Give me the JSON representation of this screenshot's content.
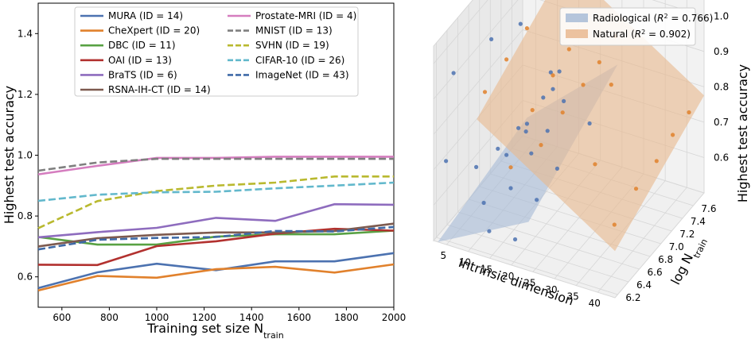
{
  "chart_data": [
    {
      "type": "line",
      "xlabel": "Training set size N_train",
      "ylabel": "Highest test accuracy",
      "xlim": [
        500,
        2000
      ],
      "ylim": [
        0.5,
        1.5
      ],
      "xticks": [
        600,
        800,
        1000,
        1200,
        1400,
        1600,
        1800,
        2000
      ],
      "yticks": [
        0.6,
        0.8,
        1.0,
        1.2,
        1.4
      ],
      "x": [
        500,
        750,
        1000,
        1250,
        1500,
        1750,
        2000
      ],
      "legend_position": "top",
      "series": [
        {
          "name": "MURA (ID = 14)",
          "color": "#4c72b0",
          "dash": false,
          "values": [
            0.563,
            0.615,
            0.643,
            0.622,
            0.651,
            0.651,
            0.678
          ]
        },
        {
          "name": "CheXpert (ID = 20)",
          "color": "#e1812c",
          "dash": false,
          "values": [
            0.555,
            0.603,
            0.597,
            0.625,
            0.633,
            0.614,
            0.641
          ]
        },
        {
          "name": "DBC (ID = 11)",
          "color": "#58a143",
          "dash": false,
          "values": [
            0.731,
            0.706,
            0.706,
            0.732,
            0.74,
            0.74,
            0.752
          ]
        },
        {
          "name": "OAI (ID = 13)",
          "color": "#b2312f",
          "dash": false,
          "values": [
            0.64,
            0.639,
            0.701,
            0.717,
            0.742,
            0.758,
            0.752
          ]
        },
        {
          "name": "BraTS (ID = 6)",
          "color": "#8e6cbe",
          "dash": false,
          "values": [
            0.73,
            0.747,
            0.761,
            0.794,
            0.784,
            0.839,
            0.837
          ]
        },
        {
          "name": "RSNA-IH-CT (ID = 14)",
          "color": "#7d5a4f",
          "dash": false,
          "values": [
            0.7,
            0.727,
            0.738,
            0.746,
            0.746,
            0.751,
            0.775
          ]
        },
        {
          "name": "Prostate-MRI (ID = 4)",
          "color": "#d57dbf",
          "dash": false,
          "values": [
            0.937,
            0.965,
            0.991,
            0.991,
            0.995,
            0.995,
            0.995
          ]
        },
        {
          "name": "MNIST (ID = 13)",
          "color": "#7f7f7f",
          "dash": true,
          "values": [
            0.949,
            0.976,
            0.988,
            0.988,
            0.988,
            0.988,
            0.988
          ]
        },
        {
          "name": "SVHN (ID = 19)",
          "color": "#b9b92f",
          "dash": true,
          "values": [
            0.76,
            0.849,
            0.882,
            0.9,
            0.91,
            0.93,
            0.93
          ]
        },
        {
          "name": "CIFAR-10 (ID = 26)",
          "color": "#62b8cc",
          "dash": true,
          "values": [
            0.85,
            0.87,
            0.878,
            0.88,
            0.891,
            0.9,
            0.91
          ]
        },
        {
          "name": "ImageNet (ID = 43)",
          "color": "#3f6aa7",
          "dash": true,
          "values": [
            0.69,
            0.722,
            0.728,
            0.731,
            0.751,
            0.749,
            0.764
          ]
        }
      ]
    },
    {
      "type": "scatter",
      "projection": "3d",
      "xlabel": "Intrinsic dimension",
      "ylabel": "log N_train",
      "zlabel": "Highest test accuracy",
      "xlim": [
        2,
        44
      ],
      "ylim": [
        6.15,
        7.8
      ],
      "zlim": [
        0.5,
        1.05
      ],
      "xticks": [
        5,
        10,
        15,
        20,
        25,
        30,
        35,
        40
      ],
      "yticks": [
        6.2,
        6.4,
        6.6,
        6.8,
        7.0,
        7.2,
        7.4,
        7.6
      ],
      "zticks": [
        0.6,
        0.7,
        0.8,
        0.9,
        1.0
      ],
      "legend_position": "top",
      "series": [
        {
          "name": "Radiological (R^2 = 0.766)",
          "legend_r2": "0.766",
          "legend_prefix": "Radiological",
          "color": "#4c72b0",
          "plane_color": "#a8bcd6",
          "plane": {
            "a": 0.011,
            "b": 0.09,
            "c": -0.18
          },
          "points": [
            [
              4,
              6.22,
              0.72
            ],
            [
              4,
              7.6,
              0.86
            ],
            [
              6,
              6.2,
              0.98
            ],
            [
              6,
              6.9,
              0.95
            ],
            [
              6,
              7.6,
              0.99
            ],
            [
              11,
              6.22,
              0.73
            ],
            [
              11,
              6.62,
              0.71
            ],
            [
              11,
              7.0,
              0.7
            ],
            [
              11,
              7.6,
              0.75
            ],
            [
              13,
              6.2,
              0.64
            ],
            [
              13,
              6.62,
              0.7
            ],
            [
              13,
              7.0,
              0.72
            ],
            [
              13,
              7.3,
              0.74
            ],
            [
              13,
              7.6,
              0.76
            ],
            [
              14,
              6.22,
              0.56
            ],
            [
              14,
              6.62,
              0.61
            ],
            [
              14,
              7.0,
              0.64
            ],
            [
              14,
              7.3,
              0.65
            ],
            [
              14,
              7.6,
              0.68
            ],
            [
              14,
              6.9,
              0.72
            ],
            [
              14,
              7.4,
              0.75
            ],
            [
              20,
              6.22,
              0.56
            ],
            [
              20,
              6.62,
              0.6
            ],
            [
              20,
              7.0,
              0.62
            ],
            [
              20,
              7.6,
              0.64
            ]
          ]
        },
        {
          "name": "Natural (R^2 = 0.902)",
          "legend_r2": "0.902",
          "legend_prefix": "Natural",
          "color": "#e1812c",
          "plane_color": "#e9b98f",
          "plane": {
            "a": -0.0078,
            "b": 0.087,
            "c": 0.44
          },
          "points": [
            [
              13,
              6.22,
              0.95
            ],
            [
              13,
              6.62,
              0.97
            ],
            [
              13,
              7.0,
              0.99
            ],
            [
              13,
              7.6,
              0.99
            ],
            [
              19,
              6.22,
              0.76
            ],
            [
              19,
              6.62,
              0.85
            ],
            [
              19,
              7.0,
              0.88
            ],
            [
              19,
              7.3,
              0.9
            ],
            [
              19,
              7.6,
              0.93
            ],
            [
              26,
              6.22,
              0.85
            ],
            [
              26,
              6.62,
              0.87
            ],
            [
              26,
              7.0,
              0.88
            ],
            [
              26,
              7.3,
              0.89
            ],
            [
              26,
              7.6,
              0.91
            ],
            [
              43,
              6.22,
              0.69
            ],
            [
              43,
              6.62,
              0.72
            ],
            [
              43,
              7.0,
              0.73
            ],
            [
              43,
              7.3,
              0.75
            ],
            [
              43,
              7.6,
              0.76
            ],
            [
              35,
              6.5,
              0.78
            ],
            [
              30,
              7.2,
              0.86
            ]
          ]
        }
      ]
    }
  ]
}
